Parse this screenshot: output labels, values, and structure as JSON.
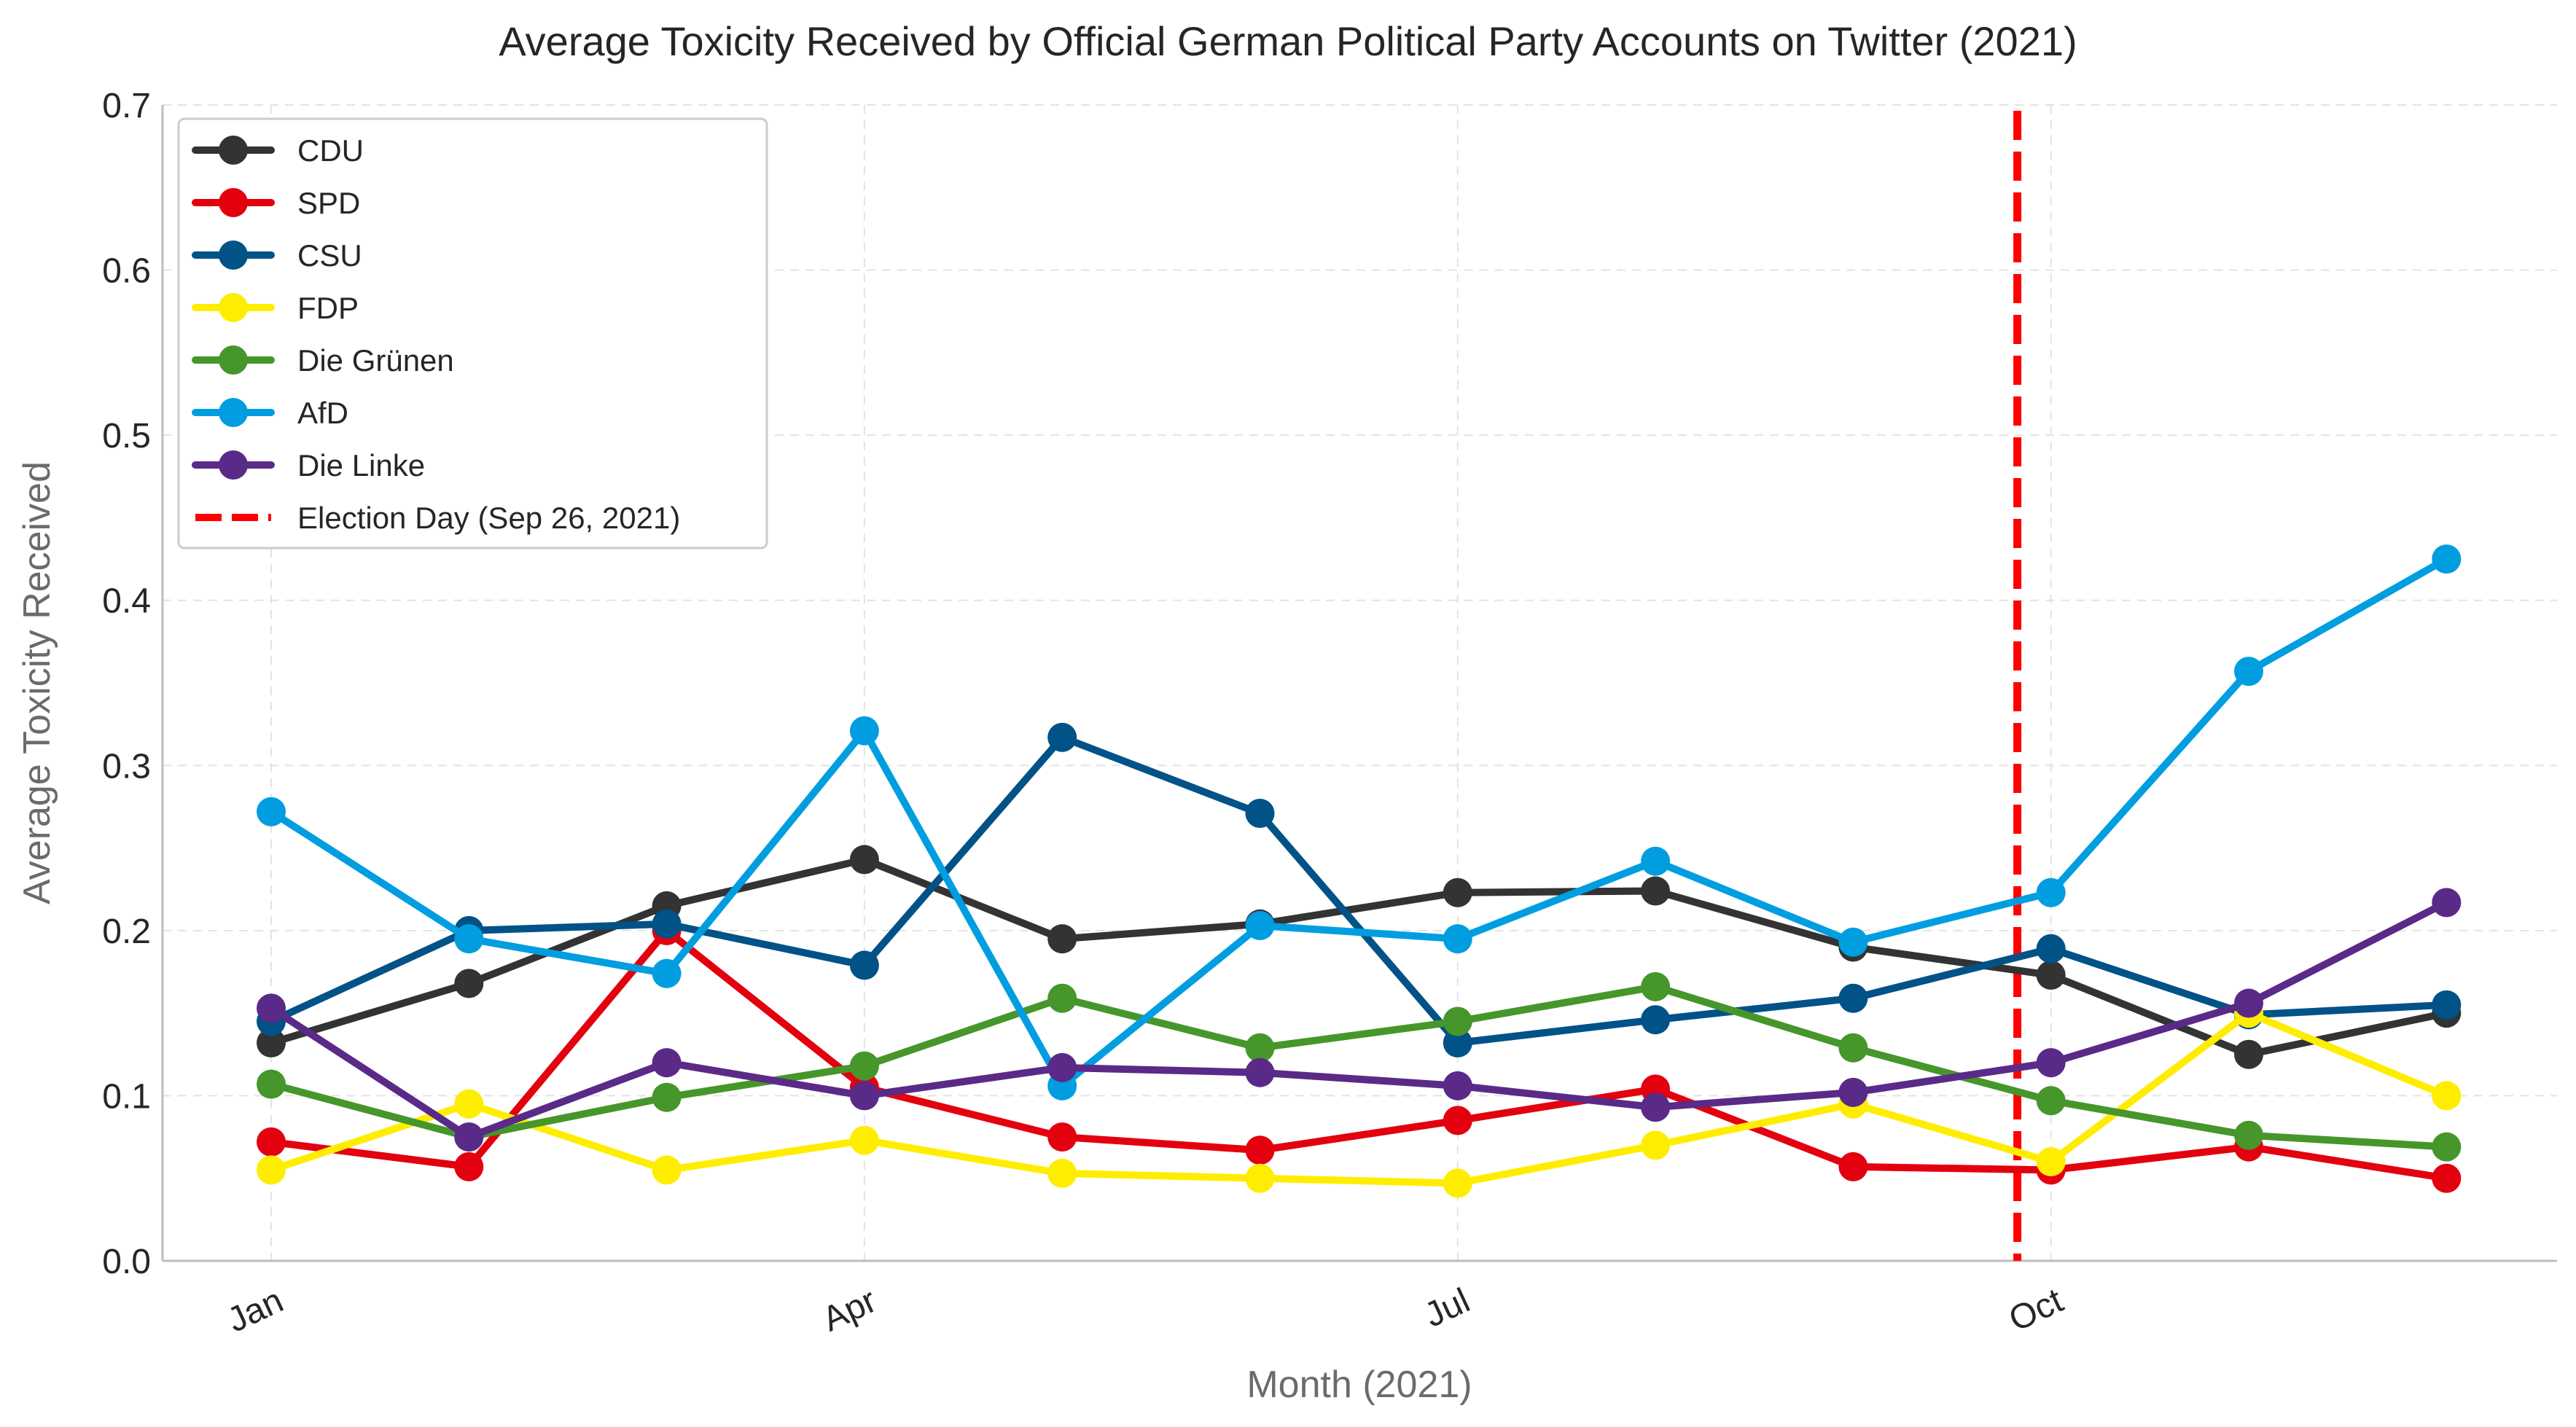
{
  "chart_data": {
    "type": "line",
    "title": "Average Toxicity Received by Official German Political Party Accounts on Twitter (2021)",
    "xlabel": "Month (2021)",
    "ylabel": "Average Toxicity Received",
    "ylim": [
      0,
      0.7
    ],
    "yticks": [
      "0.0",
      "0.1",
      "0.2",
      "0.3",
      "0.4",
      "0.5",
      "0.6",
      "0.7"
    ],
    "x": [
      1,
      2,
      3,
      4,
      5,
      6,
      7,
      8,
      9,
      10,
      11,
      12
    ],
    "xticks": [
      {
        "x": 1,
        "label": "Jan"
      },
      {
        "x": 4,
        "label": "Apr"
      },
      {
        "x": 7,
        "label": "Jul"
      },
      {
        "x": 10,
        "label": "Oct"
      }
    ],
    "grid": true,
    "legend_position": "top-left",
    "series": [
      {
        "name": "CDU",
        "color": "#333333",
        "values": [
          0.132,
          0.168,
          0.215,
          0.243,
          0.195,
          0.204,
          0.223,
          0.224,
          0.19,
          0.173,
          0.125,
          0.15
        ]
      },
      {
        "name": "SPD",
        "color": "#e3000f",
        "values": [
          0.072,
          0.057,
          0.2,
          0.105,
          0.075,
          0.067,
          0.085,
          0.104,
          0.057,
          0.055,
          0.069,
          0.05
        ]
      },
      {
        "name": "CSU",
        "color": "#005287",
        "values": [
          0.145,
          0.2,
          0.204,
          0.179,
          0.317,
          0.271,
          0.132,
          0.146,
          0.159,
          0.189,
          0.149,
          0.155
        ]
      },
      {
        "name": "FDP",
        "color": "#ffed00",
        "values": [
          0.055,
          0.095,
          0.055,
          0.073,
          0.053,
          0.05,
          0.047,
          0.07,
          0.095,
          0.06,
          0.15,
          0.1
        ]
      },
      {
        "name": "Die Grünen",
        "color": "#46962b",
        "values": [
          0.107,
          0.075,
          0.099,
          0.118,
          0.159,
          0.129,
          0.145,
          0.166,
          0.129,
          0.097,
          0.076,
          0.069
        ]
      },
      {
        "name": "AfD",
        "color": "#009ee0",
        "values": [
          0.272,
          0.195,
          0.174,
          0.321,
          0.106,
          0.203,
          0.195,
          0.242,
          0.193,
          0.223,
          0.357,
          0.425
        ]
      },
      {
        "name": "Die Linke",
        "color": "#5a2a88",
        "values": [
          0.153,
          0.075,
          0.12,
          0.1,
          0.117,
          0.114,
          0.106,
          0.093,
          0.102,
          0.12,
          0.156,
          0.217
        ]
      }
    ],
    "vline": {
      "label": "Election Day (Sep 26, 2021)",
      "x": 9.83,
      "color": "#ff0000"
    }
  }
}
